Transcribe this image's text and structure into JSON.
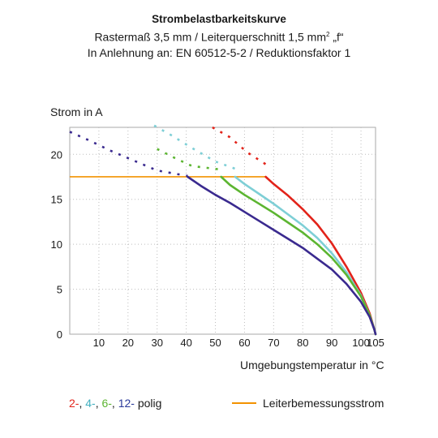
{
  "chart_data": {
    "type": "line",
    "title": "Strombelastbarkeitskurve",
    "subtitle_line1_prefix": "Rastermaß 3,5 mm / Leiterquerschnitt 1,5 mm",
    "subtitle_line1_sup": "2",
    "subtitle_line1_suffix": " „f“",
    "subtitle_line2": "In Anlehnung an: EN 60512-5-2 / Reduktionsfaktor 1",
    "ylabel": "Strom in A",
    "xlabel": "Umgebungstemperatur in °C",
    "xlim": [
      0,
      105
    ],
    "ylim": [
      0,
      23
    ],
    "x_ticks": [
      10,
      20,
      30,
      40,
      50,
      60,
      70,
      80,
      90,
      100,
      105
    ],
    "y_ticks": [
      0,
      5,
      10,
      15,
      20
    ],
    "grid": "dotted",
    "rated_current": 17.5,
    "series": [
      {
        "name": "2-",
        "color": "#e2231a",
        "dashed": [
          [
            49,
            23
          ],
          [
            55,
            21.9
          ],
          [
            61,
            20.2
          ],
          [
            67.3,
            18.9
          ]
        ],
        "solid": [
          [
            67.3,
            17.5
          ],
          [
            70,
            16.7
          ],
          [
            75,
            15.4
          ],
          [
            80,
            13.9
          ],
          [
            85,
            12.2
          ],
          [
            90,
            10.1
          ],
          [
            95,
            7.5
          ],
          [
            100,
            4.6
          ],
          [
            103,
            2.3
          ],
          [
            104.6,
            0.5
          ],
          [
            105,
            0
          ]
        ]
      },
      {
        "name": "4-",
        "color": "#7ecfd6",
        "dashed": [
          [
            29,
            23.2
          ],
          [
            35,
            22.1
          ],
          [
            42,
            20.7
          ],
          [
            50,
            19.2
          ],
          [
            56.8,
            18.4
          ]
        ],
        "solid": [
          [
            56.8,
            17.5
          ],
          [
            60,
            16.7
          ],
          [
            65,
            15.6
          ],
          [
            70,
            14.5
          ],
          [
            75,
            13.3
          ],
          [
            80,
            12.1
          ],
          [
            85,
            10.7
          ],
          [
            90,
            9.0
          ],
          [
            95,
            6.9
          ],
          [
            100,
            4.3
          ],
          [
            103,
            2.1
          ],
          [
            104.6,
            0.5
          ],
          [
            105,
            0
          ]
        ]
      },
      {
        "name": "6-",
        "color": "#5cb531",
        "dashed": [
          [
            30,
            20.6
          ],
          [
            36,
            19.6
          ],
          [
            42,
            18.7
          ],
          [
            52,
            18.3
          ]
        ],
        "solid": [
          [
            52,
            17.5
          ],
          [
            55,
            16.6
          ],
          [
            60,
            15.5
          ],
          [
            65,
            14.5
          ],
          [
            70,
            13.5
          ],
          [
            75,
            12.4
          ],
          [
            80,
            11.3
          ],
          [
            85,
            10.0
          ],
          [
            90,
            8.5
          ],
          [
            95,
            6.6
          ],
          [
            100,
            4.2
          ],
          [
            103,
            2.1
          ],
          [
            104.6,
            0.5
          ],
          [
            105,
            0
          ]
        ]
      },
      {
        "name": "12-",
        "color": "#3a2a8f",
        "dashed": [
          [
            0,
            22.5
          ],
          [
            7,
            21.5
          ],
          [
            14,
            20.4
          ],
          [
            22,
            19.3
          ],
          [
            30,
            18.2
          ],
          [
            40.5,
            17.6
          ]
        ],
        "solid": [
          [
            40.5,
            17.5
          ],
          [
            45,
            16.5
          ],
          [
            50,
            15.5
          ],
          [
            55,
            14.6
          ],
          [
            60,
            13.6
          ],
          [
            65,
            12.6
          ],
          [
            70,
            11.6
          ],
          [
            75,
            10.6
          ],
          [
            80,
            9.6
          ],
          [
            85,
            8.4
          ],
          [
            90,
            7.2
          ],
          [
            95,
            5.6
          ],
          [
            100,
            3.6
          ],
          [
            103,
            1.9
          ],
          [
            104.6,
            0.5
          ],
          [
            105,
            0
          ]
        ]
      }
    ],
    "rated_line": {
      "name": "Leiterbemessungsstrom",
      "color": "#f39200",
      "y": 17.5,
      "x": [
        0,
        67.3
      ]
    }
  },
  "legend": {
    "items": [
      {
        "label": "2-",
        "sep": ", ",
        "color": "#e2231a"
      },
      {
        "label": "4-",
        "sep": ", ",
        "color": "#42b0c0"
      },
      {
        "label": "6-",
        "sep": ", ",
        "color": "#5cb531"
      },
      {
        "label": "12-",
        "sep": "",
        "color": "#2a3a9a"
      }
    ],
    "suffix": " polig",
    "rated_label": "Leiterbemessungsstrom"
  }
}
